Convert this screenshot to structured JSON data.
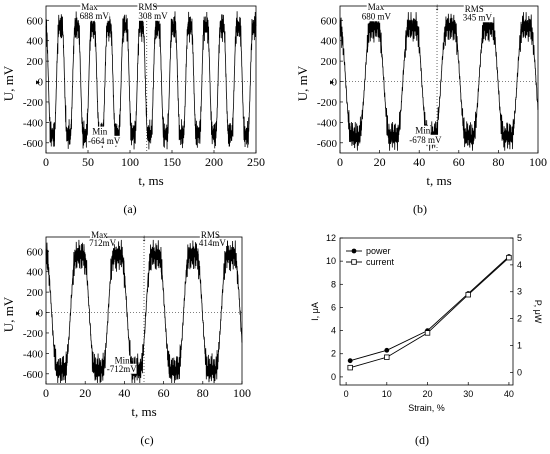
{
  "captions": [
    "(a)",
    "(b)",
    "(c)",
    "(d)"
  ],
  "chart_data": [
    {
      "type": "line",
      "panel": "a",
      "xlabel": "t, ms",
      "ylabel": "U, mV",
      "xlim": [
        0,
        250
      ],
      "ylim": [
        -700,
        740
      ],
      "xticks": [
        0,
        50,
        100,
        150,
        200,
        250
      ],
      "yticks": [
        -600,
        -400,
        -200,
        0,
        200,
        400,
        600
      ],
      "signal": {
        "cycles_over_range": 13,
        "peak_pos": 688,
        "peak_neg": -664
      },
      "annotations": [
        {
          "text": "Max",
          "x": 42,
          "y": 700
        },
        {
          "text": "688 mV",
          "x": 40,
          "y": 615
        },
        {
          "text": "RMS",
          "x": 110,
          "y": 700
        },
        {
          "text": "308 mV",
          "x": 110,
          "y": 615
        },
        {
          "text": "Min",
          "x": 55,
          "y": -520
        },
        {
          "text": "-664 mV",
          "x": 50,
          "y": -610
        }
      ],
      "markers": [
        {
          "x": 120
        }
      ]
    },
    {
      "type": "line",
      "panel": "b",
      "xlabel": "t, ms",
      "ylabel": "U, mV",
      "xlim": [
        0,
        100
      ],
      "ylim": [
        -700,
        740
      ],
      "xticks": [
        0,
        20,
        40,
        60,
        80,
        100
      ],
      "yticks": [
        -600,
        -400,
        -200,
        0,
        200,
        400,
        600
      ],
      "signal": {
        "cycles_over_range": 5.2,
        "peak_pos": 680,
        "peak_neg": -678
      },
      "annotations": [
        {
          "text": "Max",
          "x": 14,
          "y": 700
        },
        {
          "text": "680 mV",
          "x": 11,
          "y": 610
        },
        {
          "text": "RMS",
          "x": 63,
          "y": 680
        },
        {
          "text": "345 mV",
          "x": 62,
          "y": 600
        },
        {
          "text": "Min",
          "x": 38,
          "y": -510
        },
        {
          "text": "-678 mV",
          "x": 35,
          "y": -600
        }
      ],
      "markers": [
        {
          "x": 49
        }
      ]
    },
    {
      "type": "line",
      "panel": "c",
      "xlabel": "t, ms",
      "ylabel": "U, mV",
      "xlim": [
        0,
        100
      ],
      "ylim": [
        -700,
        740
      ],
      "xticks": [
        0,
        20,
        40,
        60,
        80,
        100
      ],
      "yticks": [
        -600,
        -400,
        -200,
        0,
        200,
        400,
        600
      ],
      "signal": {
        "cycles_over_range": 5.2,
        "peak_pos": 712,
        "peak_neg": -712
      },
      "annotations": [
        {
          "text": "Max",
          "x": 23,
          "y": 730
        },
        {
          "text": "712mV",
          "x": 22,
          "y": 650
        },
        {
          "text": "RMS",
          "x": 79,
          "y": 730
        },
        {
          "text": "414mV",
          "x": 78,
          "y": 650
        },
        {
          "text": "Min",
          "x": 35,
          "y": -500
        },
        {
          "text": "-712mV",
          "x": 31,
          "y": -580
        }
      ],
      "markers": [
        {
          "x": 50
        }
      ]
    },
    {
      "type": "line",
      "panel": "d",
      "xlabel": "Strain, %",
      "ylabel": "I, μA",
      "ylabel_right": "P, μW",
      "xlim": [
        -1.5,
        41
      ],
      "ylim": [
        -0.7,
        12
      ],
      "ylim_right": [
        -0.47,
        5
      ],
      "xticks": [
        0,
        10,
        20,
        30,
        40
      ],
      "yticks": [
        0,
        2,
        4,
        6,
        8,
        10,
        12
      ],
      "yticks_right": [
        0,
        1,
        2,
        3,
        4,
        5
      ],
      "legend": "top-left",
      "series": [
        {
          "name": "power",
          "marker": "filled-circle",
          "x": [
            1,
            10,
            20,
            30,
            40
          ],
          "values": [
            1.4,
            2.3,
            4.0,
            7.2,
            10.4
          ]
        },
        {
          "name": "current",
          "marker": "open-square",
          "x": [
            1,
            10,
            20,
            30,
            40
          ],
          "values": [
            0.8,
            1.7,
            3.8,
            7.1,
            10.3
          ]
        }
      ]
    }
  ]
}
